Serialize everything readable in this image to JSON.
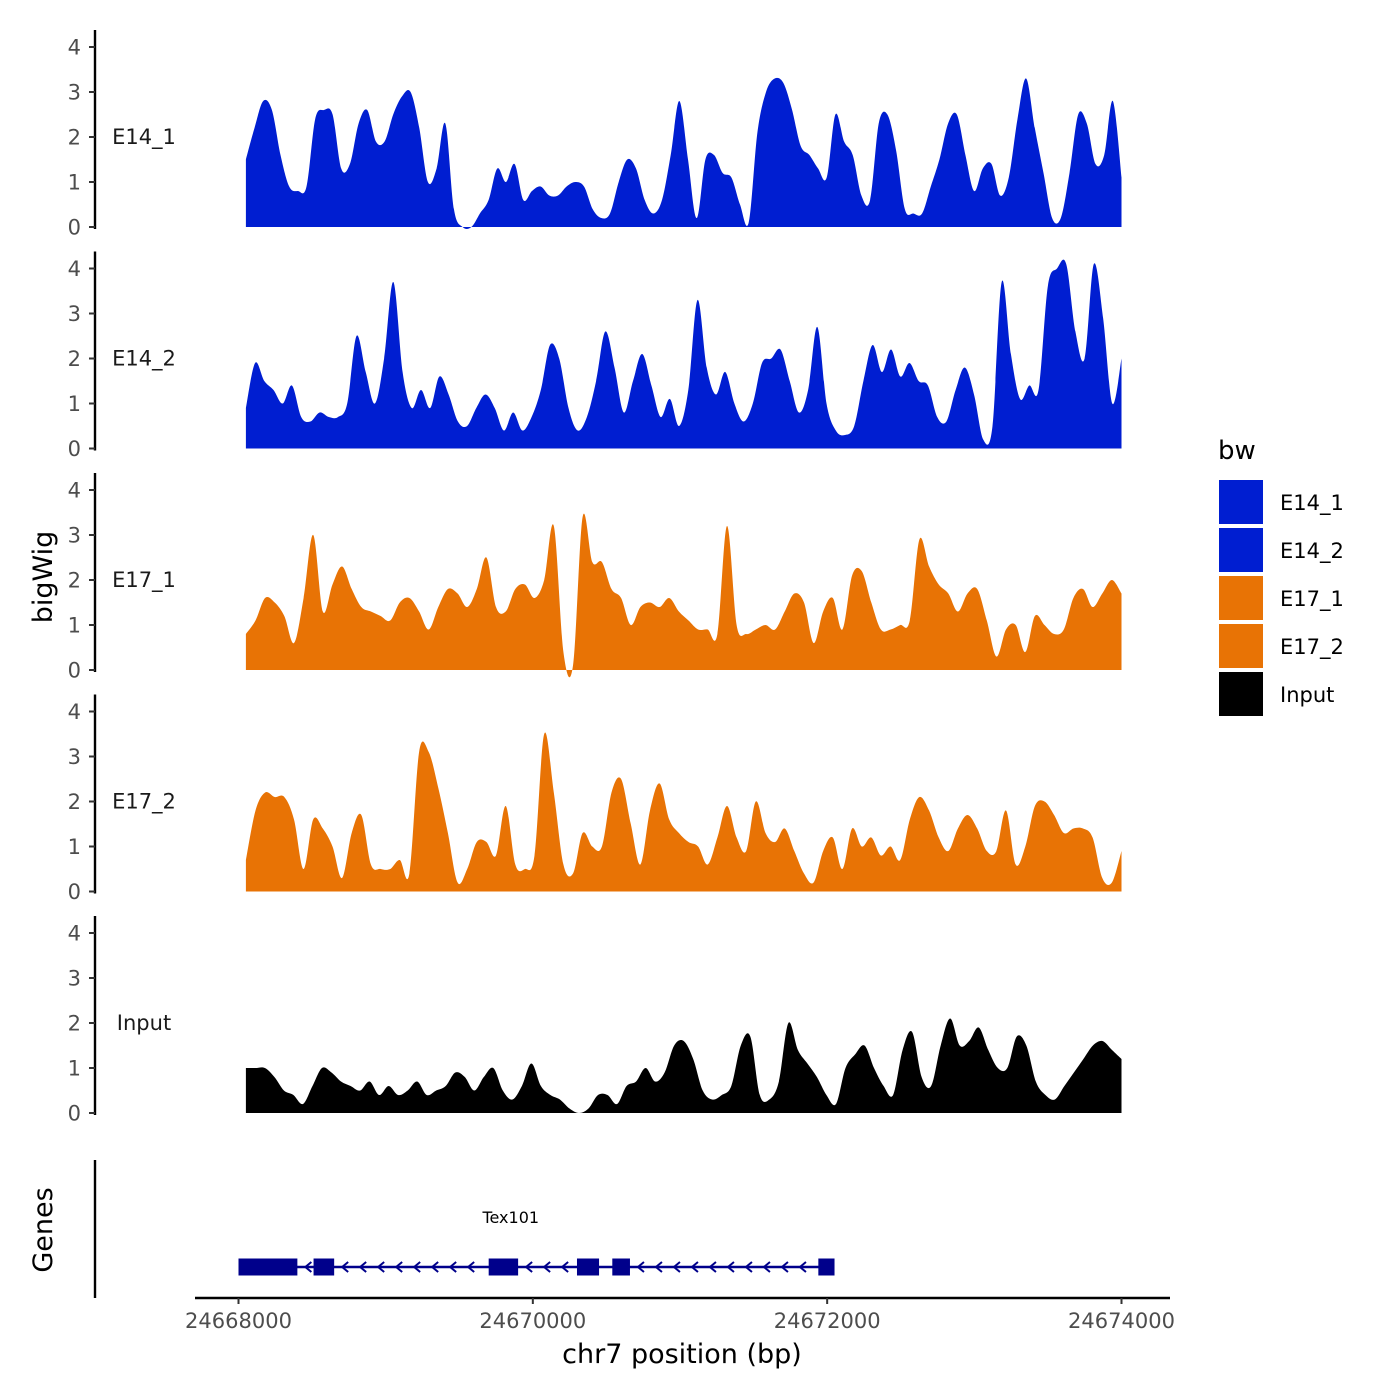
{
  "chart_data": {
    "type": "area",
    "title": "",
    "xlabel": "chr7 position (bp)",
    "ylabel": "bigWig",
    "genes_label": "Genes",
    "xlim": [
      24667950,
      24674100
    ],
    "ylim": [
      0,
      4.2
    ],
    "x_ticks": [
      {
        "value": 24668000,
        "label": "24668000"
      },
      {
        "value": 24670000,
        "label": "24670000"
      },
      {
        "value": 24672000,
        "label": "24672000"
      },
      {
        "value": 24674000,
        "label": "24674000"
      }
    ],
    "y_ticks": [
      {
        "value": 0,
        "label": "0"
      },
      {
        "value": 1,
        "label": "1"
      },
      {
        "value": 2,
        "label": "2"
      },
      {
        "value": 3,
        "label": "3"
      },
      {
        "value": 4,
        "label": "4"
      }
    ],
    "legend": {
      "title": "bw",
      "position": "right",
      "entries": [
        {
          "label": "E14_1",
          "color": "#001ed1"
        },
        {
          "label": "E14_2",
          "color": "#001ed1"
        },
        {
          "label": "E17_1",
          "color": "#e87305"
        },
        {
          "label": "E17_2",
          "color": "#e87305"
        },
        {
          "label": "Input",
          "color": "#000000"
        }
      ]
    },
    "series": [
      {
        "name": "E14_1",
        "color": "#001ed1",
        "x_start": 24668050,
        "x_end": 24674000,
        "values": [
          1.5,
          2.2,
          2.8,
          2.6,
          1.6,
          0.9,
          0.8,
          0.9,
          2.4,
          2.6,
          2.5,
          1.3,
          1.4,
          2.3,
          2.6,
          1.9,
          1.9,
          2.5,
          2.9,
          3.0,
          2.2,
          1.0,
          1.3,
          2.3,
          0.4,
          0.0,
          0.0,
          0.3,
          0.6,
          1.3,
          1.0,
          1.4,
          0.6,
          0.8,
          0.9,
          0.7,
          0.7,
          0.9,
          1.0,
          0.9,
          0.4,
          0.2,
          0.3,
          1.0,
          1.5,
          1.3,
          0.6,
          0.3,
          0.6,
          1.6,
          2.8,
          1.5,
          0.2,
          1.5,
          1.6,
          1.2,
          1.1,
          0.5,
          0.1,
          2.1,
          3.0,
          3.3,
          3.2,
          2.6,
          1.8,
          1.6,
          1.3,
          1.1,
          2.5,
          1.9,
          1.6,
          0.7,
          0.6,
          2.3,
          2.5,
          1.7,
          0.4,
          0.3,
          0.3,
          0.9,
          1.5,
          2.3,
          2.5,
          1.6,
          0.8,
          1.3,
          1.4,
          0.7,
          1.1,
          2.4,
          3.3,
          2.2,
          1.2,
          0.2,
          0.2,
          1.2,
          2.5,
          2.3,
          1.4,
          1.6,
          2.8,
          1.1
        ]
      },
      {
        "name": "E14_2",
        "color": "#001ed1",
        "x_start": 24668050,
        "x_end": 24674000,
        "values": [
          0.9,
          1.9,
          1.5,
          1.3,
          1.0,
          1.4,
          0.7,
          0.6,
          0.8,
          0.7,
          0.7,
          1.0,
          2.5,
          1.7,
          1.0,
          2.0,
          3.7,
          1.7,
          0.9,
          1.3,
          0.9,
          1.6,
          1.2,
          0.6,
          0.5,
          0.9,
          1.2,
          0.9,
          0.4,
          0.8,
          0.4,
          0.7,
          1.3,
          2.3,
          2.0,
          0.9,
          0.4,
          0.7,
          1.5,
          2.6,
          1.8,
          0.8,
          1.5,
          2.1,
          1.4,
          0.7,
          1.1,
          0.5,
          1.3,
          3.3,
          1.8,
          1.2,
          1.7,
          1.0,
          0.6,
          1.0,
          1.9,
          2.0,
          2.2,
          1.5,
          0.8,
          1.3,
          2.7,
          1.0,
          0.4,
          0.3,
          0.5,
          1.5,
          2.3,
          1.7,
          2.2,
          1.6,
          1.9,
          1.5,
          1.4,
          0.7,
          0.6,
          1.3,
          1.8,
          1.2,
          0.2,
          0.5,
          3.7,
          2.1,
          1.1,
          1.4,
          1.3,
          3.6,
          4.0,
          4.1,
          2.6,
          2.0,
          4.1,
          2.9,
          1.0,
          2.0
        ]
      },
      {
        "name": "E17_1",
        "color": "#e87305",
        "x_start": 24668050,
        "x_end": 24674000,
        "values": [
          0.8,
          1.1,
          1.6,
          1.5,
          1.2,
          0.6,
          1.6,
          3.0,
          1.3,
          1.9,
          2.3,
          1.8,
          1.4,
          1.3,
          1.2,
          1.1,
          1.5,
          1.6,
          1.3,
          0.9,
          1.4,
          1.8,
          1.7,
          1.4,
          1.8,
          2.5,
          1.4,
          1.3,
          1.8,
          1.9,
          1.6,
          2.0,
          3.2,
          0.4,
          0.1,
          3.4,
          2.4,
          2.4,
          1.8,
          1.6,
          1.0,
          1.4,
          1.5,
          1.4,
          1.6,
          1.3,
          1.1,
          0.9,
          0.9,
          0.8,
          3.2,
          1.0,
          0.8,
          0.9,
          1.0,
          0.9,
          1.3,
          1.7,
          1.5,
          0.6,
          1.3,
          1.6,
          0.9,
          2.1,
          2.2,
          1.5,
          0.9,
          0.9,
          1.0,
          1.1,
          2.9,
          2.3,
          1.9,
          1.7,
          1.3,
          1.7,
          1.8,
          1.1,
          0.3,
          0.9,
          1.0,
          0.4,
          1.2,
          1.0,
          0.8,
          0.9,
          1.6,
          1.8,
          1.4,
          1.7,
          2.0,
          1.7
        ]
      },
      {
        "name": "E17_2",
        "color": "#e87305",
        "x_start": 24668050,
        "x_end": 24674000,
        "values": [
          0.7,
          1.8,
          2.2,
          2.1,
          2.1,
          1.6,
          0.5,
          1.6,
          1.4,
          1.0,
          0.3,
          1.3,
          1.7,
          0.6,
          0.5,
          0.5,
          0.7,
          0.4,
          3.1,
          3.1,
          2.3,
          1.3,
          0.2,
          0.5,
          1.1,
          1.1,
          0.8,
          1.9,
          0.6,
          0.5,
          0.8,
          3.5,
          2.2,
          0.6,
          0.4,
          1.3,
          1.0,
          1.0,
          2.2,
          2.5,
          1.5,
          0.6,
          1.8,
          2.4,
          1.6,
          1.3,
          1.1,
          1.0,
          0.6,
          1.2,
          1.9,
          1.2,
          0.9,
          2.0,
          1.3,
          1.1,
          1.4,
          0.9,
          0.4,
          0.2,
          0.9,
          1.2,
          0.5,
          1.4,
          1.0,
          1.2,
          0.8,
          1.0,
          0.7,
          1.6,
          2.1,
          1.8,
          1.2,
          0.9,
          1.4,
          1.7,
          1.4,
          0.9,
          0.9,
          1.8,
          0.6,
          1.0,
          1.9,
          2.0,
          1.7,
          1.3,
          1.4,
          1.4,
          1.2,
          0.3,
          0.2,
          0.9
        ]
      },
      {
        "name": "Input",
        "color": "#000000",
        "x_start": 24668050,
        "x_end": 24674000,
        "values": [
          1.0,
          1.0,
          1.0,
          0.8,
          0.5,
          0.4,
          0.2,
          0.6,
          1.0,
          0.9,
          0.7,
          0.6,
          0.5,
          0.7,
          0.4,
          0.6,
          0.4,
          0.5,
          0.7,
          0.4,
          0.5,
          0.6,
          0.9,
          0.8,
          0.5,
          0.8,
          1.0,
          0.5,
          0.3,
          0.6,
          1.1,
          0.6,
          0.4,
          0.3,
          0.1,
          0.0,
          0.1,
          0.4,
          0.4,
          0.2,
          0.6,
          0.7,
          1.0,
          0.7,
          0.9,
          1.5,
          1.6,
          1.2,
          0.5,
          0.3,
          0.4,
          0.6,
          1.5,
          1.7,
          0.4,
          0.3,
          0.7,
          2.0,
          1.4,
          1.1,
          0.8,
          0.4,
          0.2,
          1.0,
          1.3,
          1.5,
          1.0,
          0.6,
          0.4,
          1.4,
          1.8,
          0.8,
          0.6,
          1.5,
          2.1,
          1.5,
          1.6,
          1.9,
          1.4,
          1.0,
          1.0,
          1.7,
          1.5,
          0.7,
          0.4,
          0.3,
          0.6,
          0.9,
          1.2,
          1.5,
          1.6,
          1.4,
          1.2
        ]
      }
    ],
    "genes": [
      {
        "name": "Tex101",
        "color": "#00008b",
        "start": 24668000,
        "end": 24672000,
        "strand": "-",
        "exons": [
          [
            24668000,
            24668400
          ],
          [
            24668510,
            24668650
          ],
          [
            24669700,
            24669900
          ],
          [
            24670300,
            24670450
          ],
          [
            24670540,
            24670660
          ],
          [
            24671940,
            24672050
          ]
        ],
        "label_position": 24669850
      }
    ]
  }
}
